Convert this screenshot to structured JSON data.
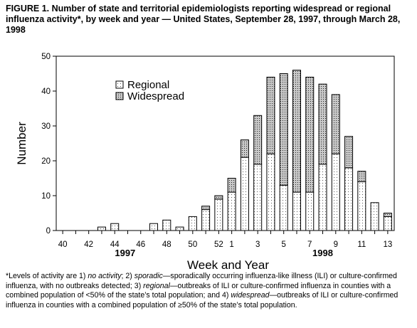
{
  "figure": {
    "title": "FIGURE 1. Number of state and territorial epidemiologists reporting widespread or regional influenza activity*, by week and year — United States, September 28, 1997, through March 28, 1998",
    "footnote": {
      "marker": "*",
      "parts": [
        "Levels of activity are 1) ",
        "no activity",
        "; 2) ",
        "sporadic",
        "—sporadically occurring influenza-like illness (ILI) or culture-confirmed influenza, with no outbreaks detected; 3) ",
        "regional",
        "—outbreaks of ILI or culture-confirmed influenza in counties with a combined population of <50% of the state’s total population; and 4) ",
        "widespread",
        "—outbreaks of ILI or culture-confirmed influenza in counties with a combined population of ≥50% of the state’s total population."
      ]
    }
  },
  "chart_data": {
    "type": "bar",
    "stacked": true,
    "xlabel": "Week and Year",
    "ylabel": "Number",
    "ylim": [
      0,
      50
    ],
    "yticks": [
      0,
      10,
      20,
      30,
      40,
      50
    ],
    "grid": false,
    "legend_position": "top-left",
    "categories": [
      40,
      41,
      42,
      43,
      44,
      45,
      46,
      47,
      48,
      49,
      50,
      51,
      52,
      1,
      2,
      3,
      4,
      5,
      6,
      7,
      8,
      9,
      10,
      11,
      12,
      13
    ],
    "tick_labels": [
      "40",
      "42",
      "44",
      "46",
      "48",
      "50",
      "52",
      "1",
      "3",
      "5",
      "7",
      "9",
      "11",
      "13"
    ],
    "year_labels": [
      "1997",
      "1998"
    ],
    "series": [
      {
        "name": "Regional",
        "pattern": "sparse-dots",
        "values": [
          0,
          0,
          0,
          1,
          2,
          0,
          0,
          2,
          3,
          1,
          4,
          6,
          9,
          11,
          21,
          19,
          22,
          13,
          11,
          11,
          19,
          22,
          18,
          14,
          8,
          4
        ]
      },
      {
        "name": "Widespread",
        "pattern": "dense-dots",
        "values": [
          0,
          0,
          0,
          0,
          0,
          0,
          0,
          0,
          0,
          0,
          0,
          1,
          1,
          4,
          5,
          14,
          22,
          32,
          35,
          33,
          23,
          17,
          9,
          3,
          0,
          1
        ]
      }
    ]
  }
}
